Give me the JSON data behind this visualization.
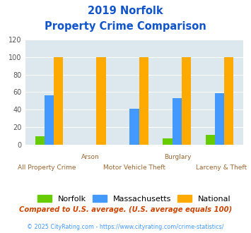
{
  "title_line1": "2019 Norfolk",
  "title_line2": "Property Crime Comparison",
  "categories": [
    "All Property Crime",
    "Arson",
    "Motor Vehicle Theft",
    "Burglary",
    "Larceny & Theft"
  ],
  "norfolk": [
    9,
    0,
    0,
    7,
    11
  ],
  "massachusetts": [
    56,
    0,
    41,
    53,
    59
  ],
  "national": [
    100,
    100,
    100,
    100,
    100
  ],
  "norfolk_color": "#66cc00",
  "massachusetts_color": "#4499ff",
  "national_color": "#ffaa00",
  "bg_color": "#dde8ee",
  "title_color": "#1155cc",
  "xlabel_color_top": "#996633",
  "xlabel_color_bottom": "#996633",
  "ylabel_max": 120,
  "ylabel_ticks": [
    0,
    20,
    40,
    60,
    80,
    100,
    120
  ],
  "legend_labels": [
    "Norfolk",
    "Massachusetts",
    "National"
  ],
  "footnote1": "Compared to U.S. average. (U.S. average equals 100)",
  "footnote2": "© 2025 CityRating.com - https://www.cityrating.com/crime-statistics/",
  "footnote1_color": "#cc4400",
  "footnote2_color": "#4499ff"
}
